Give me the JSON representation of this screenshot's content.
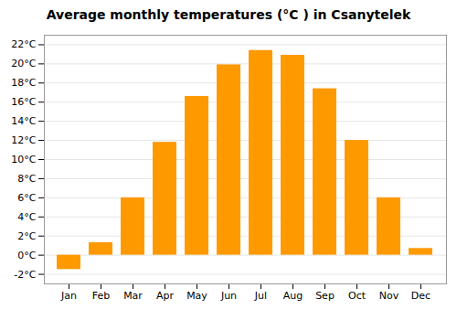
{
  "chart_data": {
    "type": "bar",
    "title": "Average monthly temperatures (°C ) in Csanytelek",
    "categories": [
      "Jan",
      "Feb",
      "Mar",
      "Apr",
      "May",
      "Jun",
      "Jul",
      "Aug",
      "Sep",
      "Oct",
      "Nov",
      "Dec"
    ],
    "values": [
      -1.5,
      1.3,
      6.0,
      11.8,
      16.6,
      19.9,
      21.4,
      20.9,
      17.4,
      12.0,
      6.0,
      0.7
    ],
    "color": "#FF9900",
    "ylim": [
      -3,
      23
    ],
    "yticks": [
      {
        "value": -2,
        "label": "-2°C"
      },
      {
        "value": 0,
        "label": "0°C"
      },
      {
        "value": 2,
        "label": "2°C"
      },
      {
        "value": 4,
        "label": "4°C"
      },
      {
        "value": 6,
        "label": "6°C"
      },
      {
        "value": 8,
        "label": "8°C"
      },
      {
        "value": 10,
        "label": "10°C"
      },
      {
        "value": 12,
        "label": "12°C"
      },
      {
        "value": 14,
        "label": "14°C"
      },
      {
        "value": 16,
        "label": "16°C"
      },
      {
        "value": 18,
        "label": "18°C"
      },
      {
        "value": 20,
        "label": "20°C"
      },
      {
        "value": 22,
        "label": "22°C"
      }
    ],
    "grid": true
  }
}
